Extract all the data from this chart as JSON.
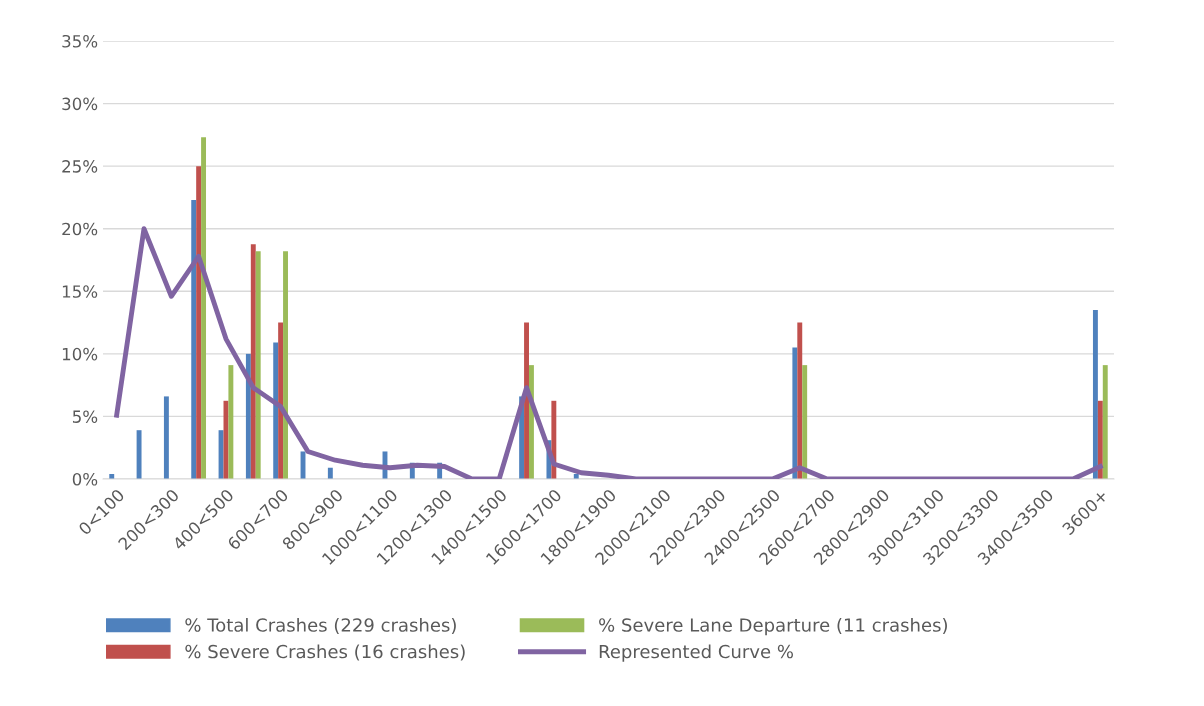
{
  "chart_data": {
    "type": "bar",
    "categories": [
      "0<100",
      null,
      "200<300",
      null,
      "400<500",
      null,
      "600<700",
      null,
      "800<900",
      null,
      "1000<1100",
      null,
      "1200<1300",
      null,
      "1400<1500",
      null,
      "1600<1700",
      null,
      "1800<1900",
      null,
      "2000<2100",
      null,
      "2200<2300",
      null,
      "2400<2500",
      null,
      "2600<2700",
      null,
      "2800<2900",
      null,
      "3000<3100",
      null,
      "3200<3300",
      null,
      "3400<3500",
      null,
      "3600+"
    ],
    "series": [
      {
        "name": "% Total Crashes (229 crashes)",
        "color": "#4f81bd",
        "values": [
          0.4,
          3.9,
          6.6,
          22.3,
          3.9,
          10.0,
          10.9,
          2.2,
          0.9,
          0,
          2.2,
          1.3,
          1.3,
          0,
          0,
          6.6,
          3.1,
          0.4,
          0,
          0,
          0,
          0,
          0,
          0,
          0,
          10.5,
          0,
          0,
          0,
          0,
          0,
          0,
          0,
          0,
          0,
          0,
          13.5
        ]
      },
      {
        "name": "% Severe Crashes (16 crashes)",
        "color": "#c0504d",
        "values": [
          0,
          0,
          0,
          25.0,
          6.25,
          18.75,
          12.5,
          0,
          0,
          0,
          0,
          0,
          0,
          0,
          0,
          12.5,
          6.25,
          0,
          0,
          0,
          0,
          0,
          0,
          0,
          0,
          12.5,
          0,
          0,
          0,
          0,
          0,
          0,
          0,
          0,
          0,
          0,
          6.25
        ]
      },
      {
        "name": "% Severe Lane Departure (11 crashes)",
        "color": "#9bbb59",
        "values": [
          0,
          0,
          0,
          27.3,
          9.1,
          18.2,
          18.2,
          0,
          0,
          0,
          0,
          0,
          0,
          0,
          0,
          9.1,
          0,
          0,
          0,
          0,
          0,
          0,
          0,
          0,
          0,
          9.1,
          0,
          0,
          0,
          0,
          0,
          0,
          0,
          0,
          0,
          0,
          9.1
        ]
      },
      {
        "name": "Represented Curve %",
        "color": "#8064a2",
        "type": "line",
        "values": [
          5.1,
          20.0,
          14.6,
          17.8,
          11.2,
          7.3,
          5.8,
          2.2,
          1.5,
          1.1,
          0.9,
          1.1,
          1.0,
          0,
          0,
          7.3,
          1.2,
          0.5,
          0.3,
          0,
          0,
          0,
          0,
          0,
          0,
          0.9,
          0,
          0,
          0,
          0,
          0,
          0,
          0,
          0,
          0,
          0,
          1.0
        ]
      }
    ],
    "ylim": [
      0,
      35
    ],
    "yticks": [
      {
        "value": 0,
        "label": "0%"
      },
      {
        "value": 5,
        "label": "5%"
      },
      {
        "value": 10,
        "label": "10%"
      },
      {
        "value": 15,
        "label": "15%"
      },
      {
        "value": 20,
        "label": "20%"
      },
      {
        "value": 25,
        "label": "25%"
      },
      {
        "value": 30,
        "label": "30%"
      },
      {
        "value": 35,
        "label": "35%"
      }
    ],
    "grid": "y",
    "legend": "bottom",
    "marker": "none",
    "line_style": "solid"
  }
}
